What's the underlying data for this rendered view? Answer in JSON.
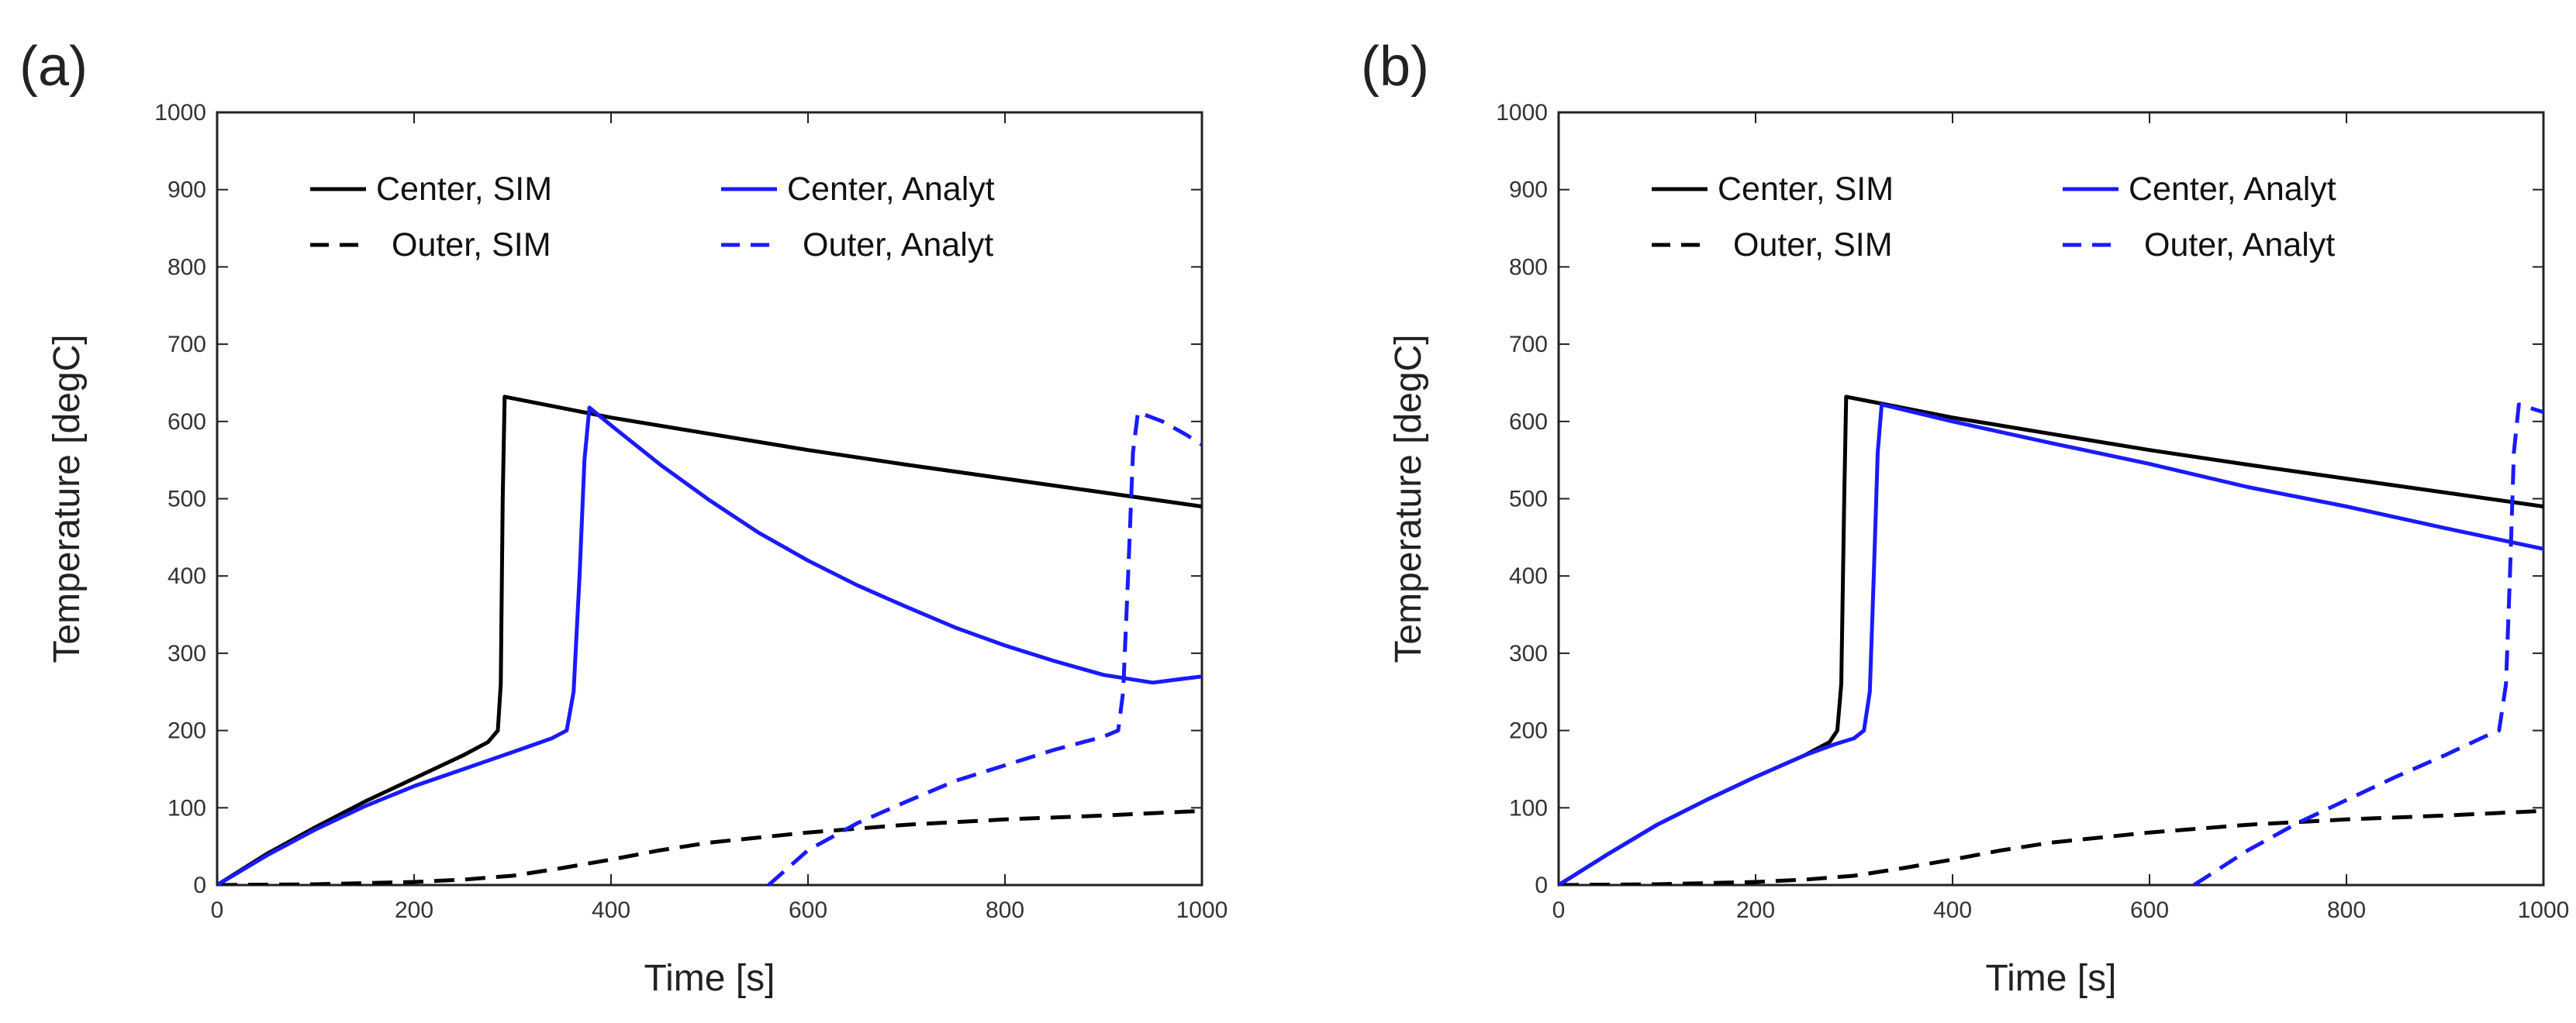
{
  "chart_data": [
    {
      "panel_label": "(a)",
      "type": "line",
      "xlabel": "Time [s]",
      "ylabel": "Temperature [degC]",
      "xlim": [
        0,
        1000
      ],
      "ylim": [
        0,
        1000
      ],
      "xticks": [
        "0",
        "200",
        "400",
        "600",
        "800",
        "1000"
      ],
      "yticks": [
        "0",
        "100",
        "200",
        "300",
        "400",
        "500",
        "600",
        "700",
        "800",
        "900",
        "1000"
      ],
      "grid": false,
      "legend_position": "top-left",
      "series": [
        {
          "name": "Center, SIM",
          "color": "#000000",
          "dash": "solid",
          "x": [
            0,
            50,
            100,
            150,
            200,
            250,
            275,
            285,
            288,
            290,
            292,
            400,
            500,
            600,
            700,
            800,
            900,
            1000
          ],
          "y": [
            0,
            40,
            75,
            108,
            138,
            168,
            185,
            200,
            260,
            500,
            632,
            605,
            584,
            563,
            544,
            526,
            508,
            490
          ]
        },
        {
          "name": "Outer, SIM",
          "color": "#000000",
          "dash": "dashed",
          "x": [
            0,
            100,
            200,
            250,
            300,
            350,
            400,
            450,
            500,
            600,
            700,
            800,
            900,
            1000
          ],
          "y": [
            0,
            1,
            4,
            7,
            12,
            22,
            33,
            45,
            55,
            68,
            78,
            85,
            90,
            96
          ]
        },
        {
          "name": "Center, Analyt",
          "color": "#1a1aff",
          "dash": "solid",
          "x": [
            0,
            50,
            100,
            150,
            200,
            250,
            300,
            340,
            355,
            362,
            368,
            373,
            378,
            400,
            450,
            500,
            550,
            600,
            650,
            700,
            750,
            800,
            850,
            900,
            950,
            1000
          ],
          "y": [
            0,
            38,
            72,
            102,
            128,
            150,
            172,
            190,
            200,
            250,
            400,
            550,
            618,
            595,
            544,
            498,
            456,
            420,
            388,
            360,
            333,
            310,
            290,
            272,
            262,
            270
          ]
        },
        {
          "name": "Outer, Analyt",
          "color": "#1a1aff",
          "dash": "dashed",
          "x": [
            560,
            600,
            650,
            700,
            750,
            800,
            850,
            900,
            915,
            920,
            925,
            930,
            935,
            960,
            985,
            1000
          ],
          "y": [
            0,
            45,
            80,
            108,
            135,
            155,
            175,
            192,
            200,
            250,
            400,
            560,
            612,
            600,
            582,
            570
          ]
        }
      ]
    },
    {
      "panel_label": "(b)",
      "type": "line",
      "xlabel": "Time [s]",
      "ylabel": "Temperature [degC]",
      "xlim": [
        0,
        1000
      ],
      "ylim": [
        0,
        1000
      ],
      "xticks": [
        "0",
        "200",
        "400",
        "600",
        "800",
        "1000"
      ],
      "yticks": [
        "0",
        "100",
        "200",
        "300",
        "400",
        "500",
        "600",
        "700",
        "800",
        "900",
        "1000"
      ],
      "grid": false,
      "legend_position": "top-left",
      "series": [
        {
          "name": "Center, SIM",
          "color": "#000000",
          "dash": "solid",
          "x": [
            0,
            50,
            100,
            150,
            200,
            250,
            275,
            283,
            287,
            290,
            292,
            400,
            500,
            600,
            700,
            800,
            900,
            1000
          ],
          "y": [
            0,
            40,
            78,
            110,
            140,
            168,
            185,
            200,
            260,
            500,
            632,
            605,
            584,
            563,
            544,
            526,
            508,
            490
          ]
        },
        {
          "name": "Outer, SIM",
          "color": "#000000",
          "dash": "dashed",
          "x": [
            0,
            100,
            200,
            250,
            300,
            350,
            400,
            450,
            500,
            600,
            700,
            800,
            900,
            1000
          ],
          "y": [
            0,
            1,
            4,
            7,
            12,
            22,
            33,
            45,
            55,
            68,
            78,
            85,
            90,
            96
          ]
        },
        {
          "name": "Center, Analyt",
          "color": "#1a1aff",
          "dash": "solid",
          "x": [
            0,
            50,
            100,
            150,
            200,
            250,
            280,
            300,
            310,
            316,
            320,
            324,
            328,
            400,
            500,
            600,
            700,
            800,
            900,
            1000
          ],
          "y": [
            0,
            40,
            78,
            110,
            140,
            168,
            182,
            190,
            200,
            250,
            400,
            560,
            622,
            600,
            572,
            545,
            515,
            490,
            462,
            435
          ]
        },
        {
          "name": "Outer, Analyt",
          "color": "#1a1aff",
          "dash": "dashed",
          "x": [
            645,
            700,
            750,
            800,
            850,
            900,
            940,
            955,
            962,
            966,
            970,
            975,
            1000
          ],
          "y": [
            0,
            45,
            80,
            110,
            140,
            168,
            192,
            200,
            260,
            400,
            560,
            622,
            612
          ]
        }
      ]
    }
  ]
}
